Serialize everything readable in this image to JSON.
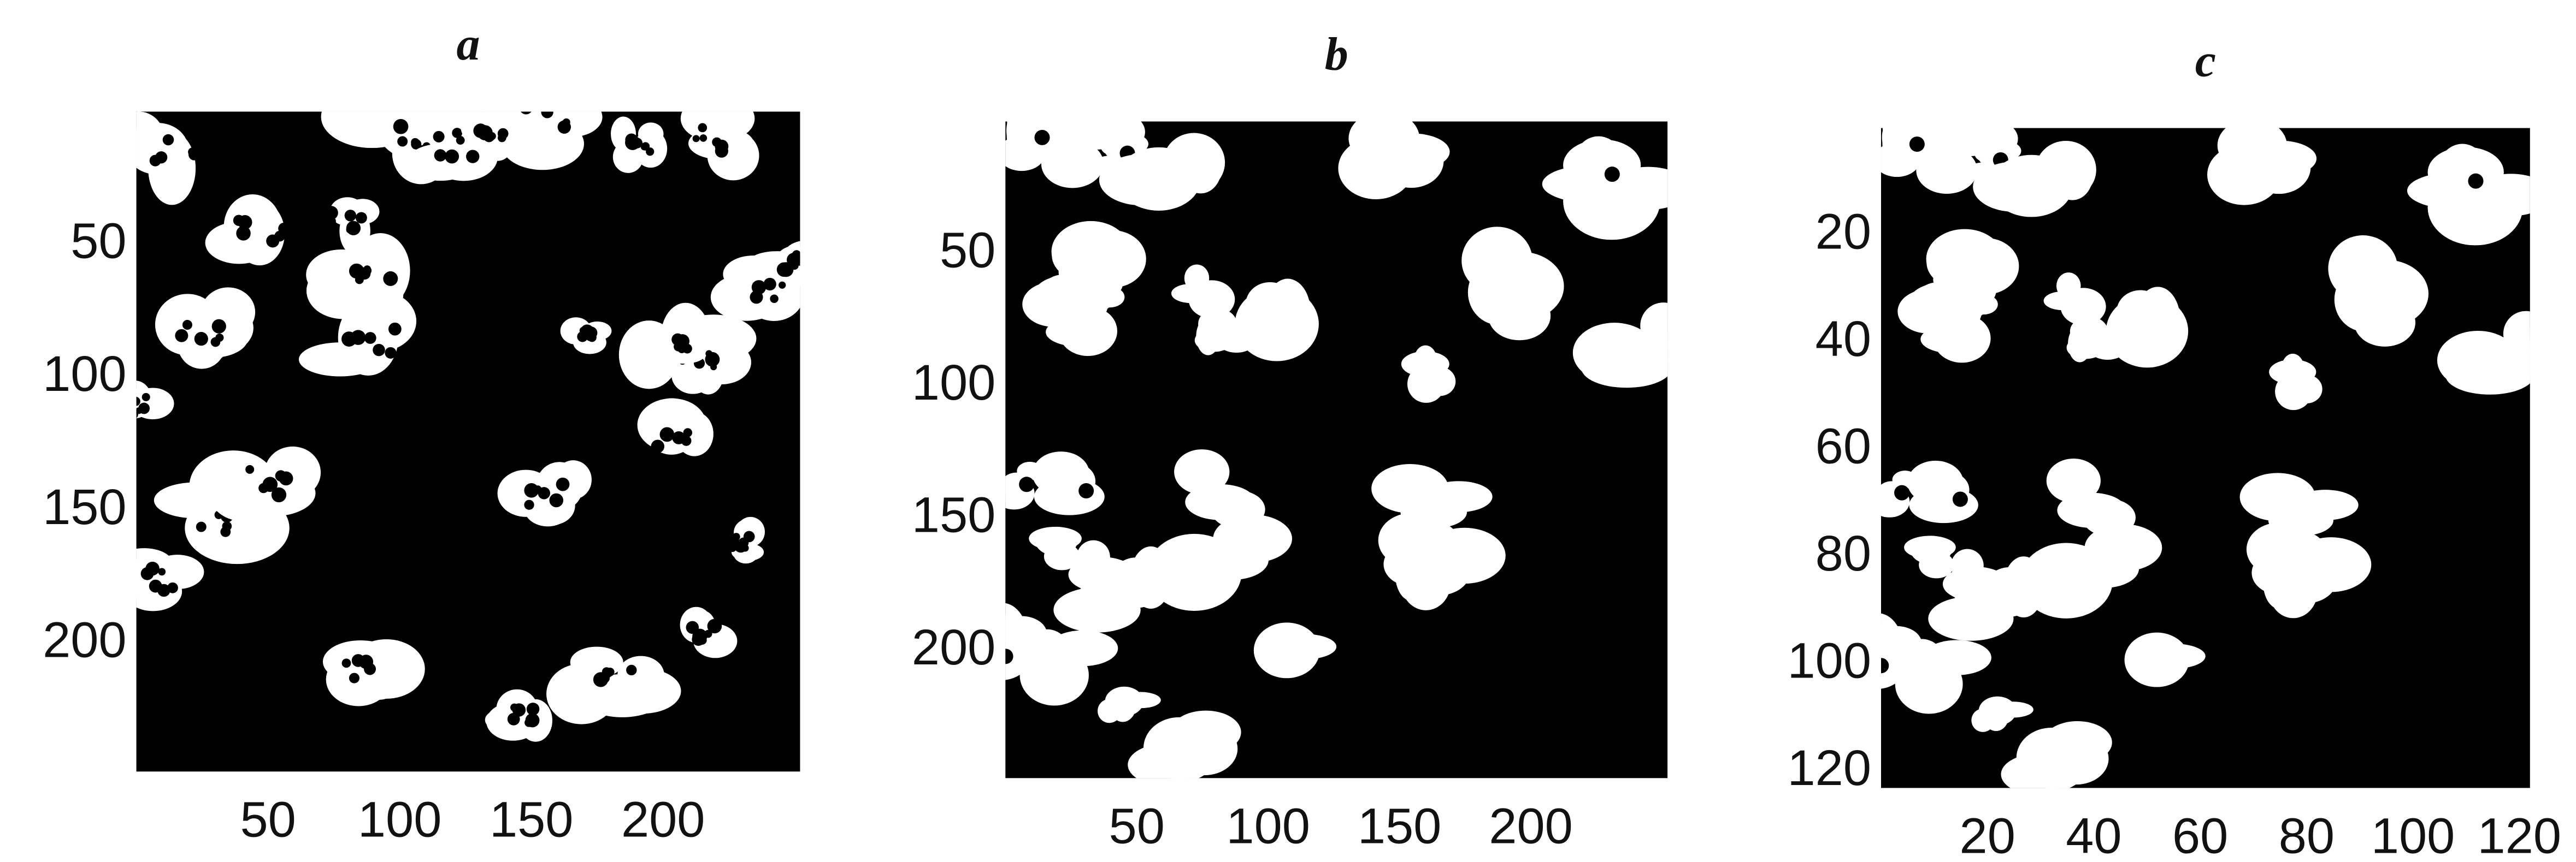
{
  "chart_data": [
    {
      "type": "image",
      "title": "a",
      "xlim": [
        0,
        252
      ],
      "ylim": [
        0,
        248
      ],
      "y_inverted": true,
      "xticks": [
        50,
        100,
        150,
        200
      ],
      "yticks": [
        50,
        100,
        150,
        200
      ]
    },
    {
      "type": "image",
      "title": "b",
      "xlim": [
        0,
        252
      ],
      "ylim": [
        0,
        248
      ],
      "y_inverted": true,
      "xticks": [
        50,
        100,
        150,
        200
      ],
      "yticks": [
        50,
        100,
        150,
        200
      ]
    },
    {
      "type": "image",
      "title": "c",
      "xlim": [
        0,
        122
      ],
      "ylim": [
        0,
        123
      ],
      "y_inverted": true,
      "xticks": [
        20,
        40,
        60,
        80,
        100,
        120
      ],
      "yticks": [
        20,
        40,
        60,
        80,
        100,
        120
      ]
    }
  ]
}
